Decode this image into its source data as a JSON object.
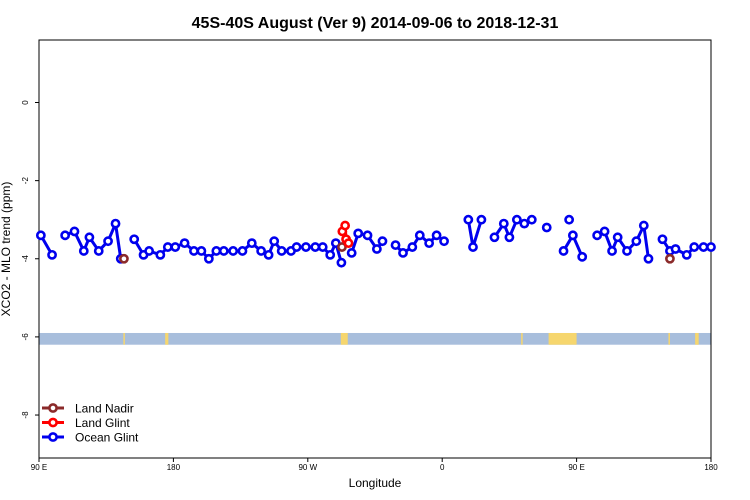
{
  "chart_data": {
    "type": "line",
    "title": "45S-40S August (Ver 9)   2014-09-06 to 2018-12-31",
    "xlabel": "Longitude",
    "ylabel": "XCO2 - MLO trend (ppm)",
    "xlim": [
      90,
      450
    ],
    "ylim": [
      -9.1,
      1.6
    ],
    "x_ticks": [
      {
        "value": 90,
        "label": "90 E"
      },
      {
        "value": 162,
        "label": "180"
      },
      {
        "value": 234,
        "label": "90 W"
      },
      {
        "value": 306,
        "label": "0"
      },
      {
        "value": 378,
        "label": "90 E"
      },
      {
        "value": 450,
        "label": "180"
      }
    ],
    "y_ticks": [
      {
        "value": 0,
        "label": "0"
      },
      {
        "value": -2,
        "label": "-2"
      },
      {
        "value": -4,
        "label": "-4"
      },
      {
        "value": -6,
        "label": "-6"
      },
      {
        "value": -8,
        "label": "-8"
      }
    ],
    "grid": false,
    "legend_position": "bottom-left",
    "map_strip": {
      "y_range": [
        -6.2,
        -5.9
      ],
      "ocean_color": "#a8bedc",
      "land_color": "#f6d66e",
      "land_segments": [
        [
          135.2,
          135.9
        ],
        [
          157.6,
          159.3
        ],
        [
          251.7,
          255.4
        ],
        [
          348.3,
          349.0
        ],
        [
          363.0,
          378.0
        ],
        [
          427.2,
          427.9
        ],
        [
          441.5,
          443.4
        ]
      ]
    },
    "series": [
      {
        "name": "Land Nadir",
        "color": "#8b2a2a",
        "connect": false,
        "points": [
          [
            135.5,
            -4.0
          ],
          [
            252.3,
            -3.7
          ],
          [
            428.0,
            -4.0
          ]
        ]
      },
      {
        "name": "Land Glint",
        "color": "#ff0000",
        "connect": true,
        "points": [
          [
            252.5,
            -3.3
          ],
          [
            254.0,
            -3.15
          ],
          [
            254.5,
            -3.5
          ],
          [
            255.8,
            -3.6
          ]
        ]
      },
      {
        "name": "Ocean Glint",
        "color": "#0000ee",
        "connect": true,
        "segments": [
          [
            [
              91,
              -3.4
            ],
            [
              97,
              -3.9
            ]
          ],
          [
            [
              104,
              -3.4
            ],
            [
              109,
              -3.3
            ],
            [
              114,
              -3.8
            ],
            [
              117,
              -3.45
            ],
            [
              122,
              -3.8
            ],
            [
              127,
              -3.55
            ],
            [
              131,
              -3.1
            ],
            [
              133.8,
              -4.0
            ]
          ],
          [
            [
              141,
              -3.5
            ],
            [
              146,
              -3.9
            ],
            [
              149,
              -3.8
            ],
            [
              155,
              -3.9
            ],
            [
              159,
              -3.7
            ],
            [
              163,
              -3.7
            ],
            [
              168,
              -3.6
            ],
            [
              173,
              -3.8
            ],
            [
              177,
              -3.8
            ],
            [
              181,
              -4.0
            ],
            [
              185,
              -3.8
            ],
            [
              189,
              -3.8
            ],
            [
              194,
              -3.8
            ],
            [
              199,
              -3.8
            ],
            [
              204,
              -3.6
            ],
            [
              209,
              -3.8
            ],
            [
              213,
              -3.9
            ],
            [
              216,
              -3.55
            ],
            [
              220,
              -3.8
            ],
            [
              225,
              -3.8
            ],
            [
              228,
              -3.7
            ],
            [
              233,
              -3.7
            ],
            [
              238,
              -3.7
            ],
            [
              242,
              -3.7
            ],
            [
              246,
              -3.9
            ],
            [
              249,
              -3.6
            ],
            [
              252,
              -4.1
            ]
          ],
          [
            [
              257.5,
              -3.85
            ],
            [
              261,
              -3.35
            ],
            [
              266,
              -3.4
            ],
            [
              271,
              -3.75
            ],
            [
              274,
              -3.55
            ]
          ],
          [
            [
              281,
              -3.65
            ],
            [
              285,
              -3.85
            ],
            [
              290,
              -3.7
            ],
            [
              294,
              -3.4
            ],
            [
              299,
              -3.6
            ],
            [
              303,
              -3.4
            ],
            [
              307,
              -3.55
            ]
          ],
          [
            [
              320,
              -3.0
            ],
            [
              322.5,
              -3.7
            ],
            [
              327,
              -3.0
            ]
          ],
          [
            [
              334,
              -3.45
            ],
            [
              339,
              -3.1
            ],
            [
              342,
              -3.45
            ],
            [
              346,
              -3.0
            ],
            [
              350,
              -3.1
            ],
            [
              354,
              -3.0
            ]
          ],
          [
            [
              371,
              -3.8
            ],
            [
              376,
              -3.4
            ],
            [
              381,
              -3.95
            ]
          ],
          [
            [
              389,
              -3.4
            ],
            [
              393,
              -3.3
            ],
            [
              397,
              -3.8
            ],
            [
              400,
              -3.45
            ],
            [
              405,
              -3.8
            ],
            [
              410,
              -3.55
            ],
            [
              414,
              -3.15
            ],
            [
              416.5,
              -4.0
            ]
          ],
          [
            [
              424,
              -3.5
            ],
            [
              428,
              -3.8
            ],
            [
              431,
              -3.75
            ],
            [
              437,
              -3.9
            ],
            [
              441,
              -3.7
            ],
            [
              446,
              -3.7
            ],
            [
              450,
              -3.7
            ]
          ]
        ],
        "isolated_points": [
          [
            362,
            -3.2
          ],
          [
            374,
            -3.0
          ]
        ]
      }
    ]
  }
}
